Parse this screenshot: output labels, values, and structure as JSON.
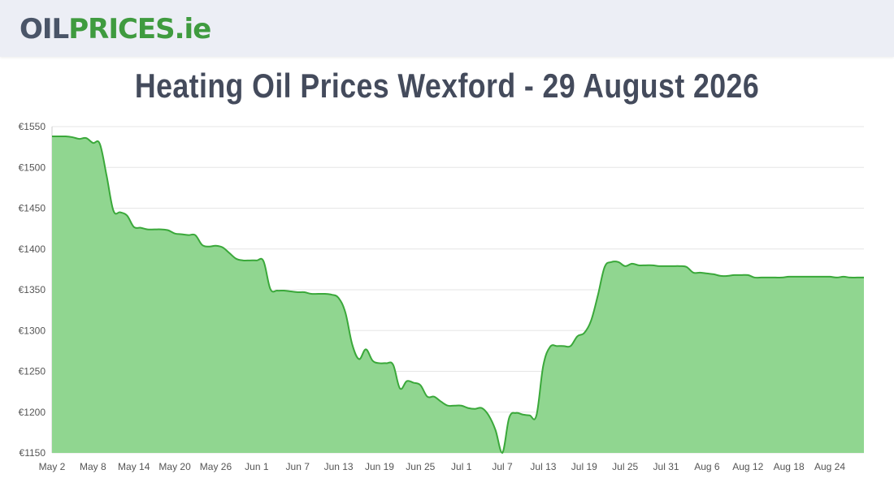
{
  "logo": {
    "part1": "OIL",
    "part2": "PRICES",
    "part3": ".ie"
  },
  "page": {
    "title": "Heating Oil Prices Wexford - 29 August 2026"
  },
  "colors": {
    "line": "#3aa83a",
    "fill": "#90d690",
    "grid": "#e6e6e6"
  },
  "chart_data": {
    "type": "area",
    "title": "Heating Oil Prices Wexford - 29 August 2026",
    "ylim": [
      1150,
      1550
    ],
    "yticks": [
      1150,
      1200,
      1250,
      1300,
      1350,
      1400,
      1450,
      1500,
      1550
    ],
    "y_tick_labels": [
      "€1150",
      "€1200",
      "€1250",
      "€1300",
      "€1350",
      "€1400",
      "€1450",
      "€1500",
      "€1550"
    ],
    "x_tick_labels": [
      "May 2",
      "May 8",
      "May 14",
      "May 20",
      "May 26",
      "Jun 1",
      "Jun 7",
      "Jun 13",
      "Jun 19",
      "Jun 25",
      "Jul 1",
      "Jul 7",
      "Jul 13",
      "Jul 19",
      "Jul 25",
      "Jul 31",
      "Aug 6",
      "Aug 12",
      "Aug 18",
      "Aug 24"
    ],
    "x_tick_dates": [
      "2026-05-02",
      "2026-05-08",
      "2026-05-14",
      "2026-05-20",
      "2026-05-26",
      "2026-06-01",
      "2026-06-07",
      "2026-06-13",
      "2026-06-19",
      "2026-06-25",
      "2026-07-01",
      "2026-07-07",
      "2026-07-13",
      "2026-07-19",
      "2026-07-25",
      "2026-07-31",
      "2026-08-06",
      "2026-08-12",
      "2026-08-18",
      "2026-08-24"
    ],
    "grid": true,
    "series": [
      {
        "points": [
          {
            "x": "2026-05-02",
            "y": 1538
          },
          {
            "x": "2026-05-03",
            "y": 1538
          },
          {
            "x": "2026-05-04",
            "y": 1538
          },
          {
            "x": "2026-05-05",
            "y": 1537
          },
          {
            "x": "2026-05-06",
            "y": 1535
          },
          {
            "x": "2026-05-07",
            "y": 1536
          },
          {
            "x": "2026-05-08",
            "y": 1530
          },
          {
            "x": "2026-05-09",
            "y": 1529
          },
          {
            "x": "2026-05-10",
            "y": 1490
          },
          {
            "x": "2026-05-11",
            "y": 1447
          },
          {
            "x": "2026-05-12",
            "y": 1445
          },
          {
            "x": "2026-05-13",
            "y": 1441
          },
          {
            "x": "2026-05-14",
            "y": 1427
          },
          {
            "x": "2026-05-15",
            "y": 1426
          },
          {
            "x": "2026-05-16",
            "y": 1424
          },
          {
            "x": "2026-05-17",
            "y": 1424
          },
          {
            "x": "2026-05-18",
            "y": 1424
          },
          {
            "x": "2026-05-19",
            "y": 1423
          },
          {
            "x": "2026-05-20",
            "y": 1419
          },
          {
            "x": "2026-05-21",
            "y": 1418
          },
          {
            "x": "2026-05-22",
            "y": 1417
          },
          {
            "x": "2026-05-23",
            "y": 1417
          },
          {
            "x": "2026-05-24",
            "y": 1405
          },
          {
            "x": "2026-05-25",
            "y": 1403
          },
          {
            "x": "2026-05-26",
            "y": 1404
          },
          {
            "x": "2026-05-27",
            "y": 1402
          },
          {
            "x": "2026-05-28",
            "y": 1395
          },
          {
            "x": "2026-05-29",
            "y": 1388
          },
          {
            "x": "2026-05-30",
            "y": 1386
          },
          {
            "x": "2026-05-31",
            "y": 1386
          },
          {
            "x": "2026-06-01",
            "y": 1386
          },
          {
            "x": "2026-06-02",
            "y": 1385
          },
          {
            "x": "2026-06-03",
            "y": 1351
          },
          {
            "x": "2026-06-04",
            "y": 1349
          },
          {
            "x": "2026-06-05",
            "y": 1349
          },
          {
            "x": "2026-06-06",
            "y": 1348
          },
          {
            "x": "2026-06-07",
            "y": 1347
          },
          {
            "x": "2026-06-08",
            "y": 1347
          },
          {
            "x": "2026-06-09",
            "y": 1345
          },
          {
            "x": "2026-06-10",
            "y": 1345
          },
          {
            "x": "2026-06-11",
            "y": 1345
          },
          {
            "x": "2026-06-12",
            "y": 1344
          },
          {
            "x": "2026-06-13",
            "y": 1340
          },
          {
            "x": "2026-06-14",
            "y": 1322
          },
          {
            "x": "2026-06-15",
            "y": 1283
          },
          {
            "x": "2026-06-16",
            "y": 1265
          },
          {
            "x": "2026-06-17",
            "y": 1277
          },
          {
            "x": "2026-06-18",
            "y": 1263
          },
          {
            "x": "2026-06-19",
            "y": 1260
          },
          {
            "x": "2026-06-20",
            "y": 1260
          },
          {
            "x": "2026-06-21",
            "y": 1258
          },
          {
            "x": "2026-06-22",
            "y": 1229
          },
          {
            "x": "2026-06-23",
            "y": 1238
          },
          {
            "x": "2026-06-24",
            "y": 1236
          },
          {
            "x": "2026-06-25",
            "y": 1233
          },
          {
            "x": "2026-06-26",
            "y": 1219
          },
          {
            "x": "2026-06-27",
            "y": 1219
          },
          {
            "x": "2026-06-28",
            "y": 1213
          },
          {
            "x": "2026-06-29",
            "y": 1208
          },
          {
            "x": "2026-06-30",
            "y": 1208
          },
          {
            "x": "2026-07-01",
            "y": 1208
          },
          {
            "x": "2026-07-02",
            "y": 1205
          },
          {
            "x": "2026-07-03",
            "y": 1204
          },
          {
            "x": "2026-07-04",
            "y": 1205
          },
          {
            "x": "2026-07-05",
            "y": 1196
          },
          {
            "x": "2026-07-06",
            "y": 1178
          },
          {
            "x": "2026-07-07",
            "y": 1150
          },
          {
            "x": "2026-07-08",
            "y": 1193
          },
          {
            "x": "2026-07-09",
            "y": 1199
          },
          {
            "x": "2026-07-10",
            "y": 1197
          },
          {
            "x": "2026-07-11",
            "y": 1196
          },
          {
            "x": "2026-07-12",
            "y": 1196
          },
          {
            "x": "2026-07-13",
            "y": 1257
          },
          {
            "x": "2026-07-14",
            "y": 1280
          },
          {
            "x": "2026-07-15",
            "y": 1281
          },
          {
            "x": "2026-07-16",
            "y": 1281
          },
          {
            "x": "2026-07-17",
            "y": 1281
          },
          {
            "x": "2026-07-18",
            "y": 1293
          },
          {
            "x": "2026-07-19",
            "y": 1297
          },
          {
            "x": "2026-07-20",
            "y": 1312
          },
          {
            "x": "2026-07-21",
            "y": 1343
          },
          {
            "x": "2026-07-22",
            "y": 1378
          },
          {
            "x": "2026-07-23",
            "y": 1384
          },
          {
            "x": "2026-07-24",
            "y": 1384
          },
          {
            "x": "2026-07-25",
            "y": 1379
          },
          {
            "x": "2026-07-26",
            "y": 1382
          },
          {
            "x": "2026-07-27",
            "y": 1380
          },
          {
            "x": "2026-07-28",
            "y": 1380
          },
          {
            "x": "2026-07-29",
            "y": 1380
          },
          {
            "x": "2026-07-30",
            "y": 1379
          },
          {
            "x": "2026-07-31",
            "y": 1379
          },
          {
            "x": "2026-08-01",
            "y": 1379
          },
          {
            "x": "2026-08-02",
            "y": 1379
          },
          {
            "x": "2026-08-03",
            "y": 1378
          },
          {
            "x": "2026-08-04",
            "y": 1371
          },
          {
            "x": "2026-08-05",
            "y": 1371
          },
          {
            "x": "2026-08-06",
            "y": 1370
          },
          {
            "x": "2026-08-07",
            "y": 1369
          },
          {
            "x": "2026-08-08",
            "y": 1367
          },
          {
            "x": "2026-08-09",
            "y": 1367
          },
          {
            "x": "2026-08-10",
            "y": 1368
          },
          {
            "x": "2026-08-11",
            "y": 1368
          },
          {
            "x": "2026-08-12",
            "y": 1368
          },
          {
            "x": "2026-08-13",
            "y": 1365
          },
          {
            "x": "2026-08-14",
            "y": 1365
          },
          {
            "x": "2026-08-15",
            "y": 1365
          },
          {
            "x": "2026-08-16",
            "y": 1365
          },
          {
            "x": "2026-08-17",
            "y": 1365
          },
          {
            "x": "2026-08-18",
            "y": 1366
          },
          {
            "x": "2026-08-19",
            "y": 1366
          },
          {
            "x": "2026-08-20",
            "y": 1366
          },
          {
            "x": "2026-08-21",
            "y": 1366
          },
          {
            "x": "2026-08-22",
            "y": 1366
          },
          {
            "x": "2026-08-23",
            "y": 1366
          },
          {
            "x": "2026-08-24",
            "y": 1366
          },
          {
            "x": "2026-08-25",
            "y": 1365
          },
          {
            "x": "2026-08-26",
            "y": 1366
          },
          {
            "x": "2026-08-27",
            "y": 1365
          },
          {
            "x": "2026-08-28",
            "y": 1365
          },
          {
            "x": "2026-08-29",
            "y": 1365
          }
        ]
      }
    ]
  }
}
